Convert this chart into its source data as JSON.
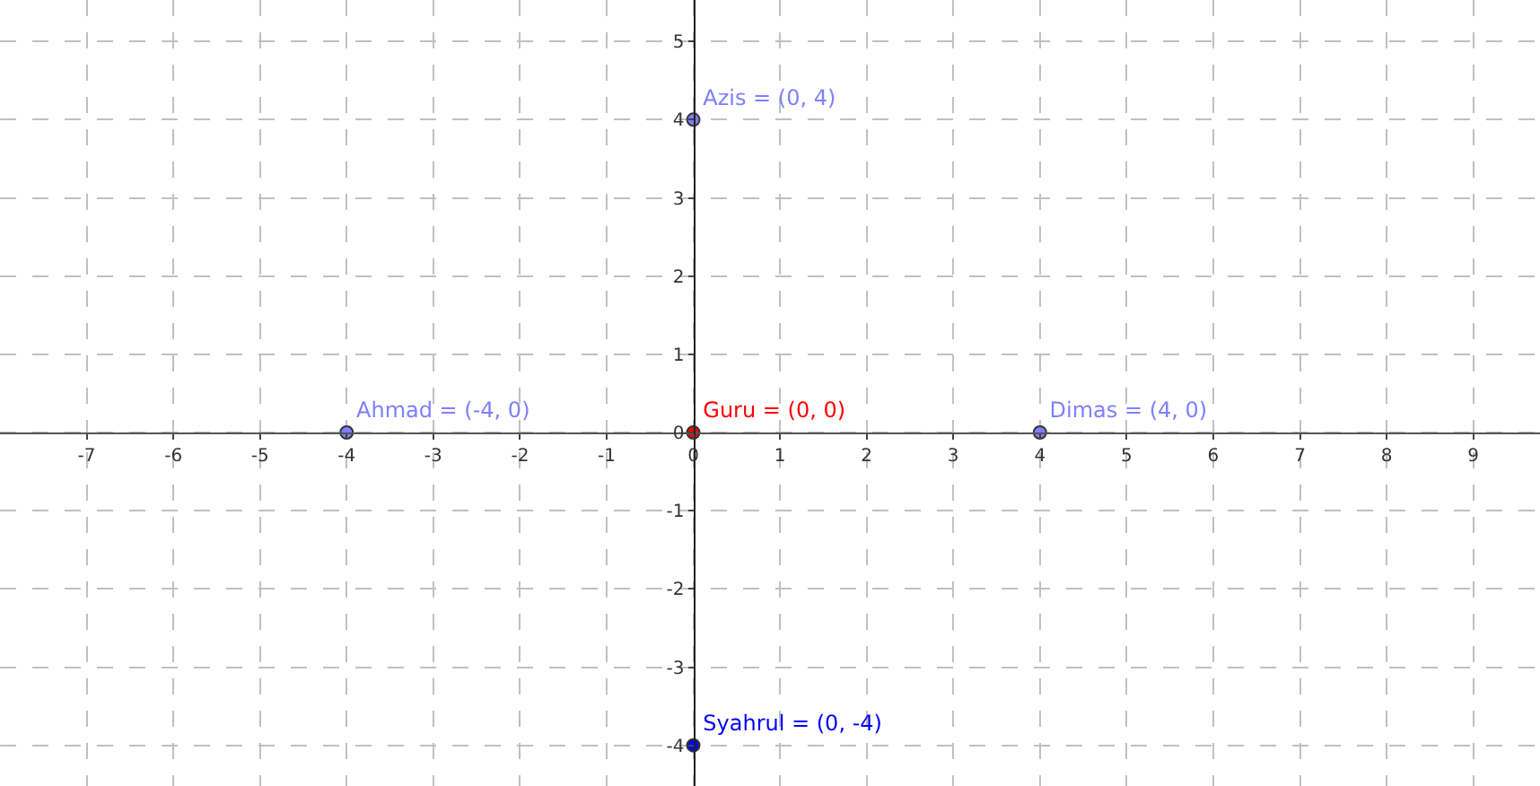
{
  "chart_data": {
    "type": "scatter",
    "xlim": [
      -8,
      9.77
    ],
    "ylim": [
      -4.52,
      5.53
    ],
    "xticks": [
      -7,
      -6,
      -5,
      -4,
      -3,
      -2,
      -1,
      0,
      1,
      2,
      3,
      4,
      5,
      6,
      7,
      8,
      9
    ],
    "yticks": [
      -4,
      -3,
      -2,
      -1,
      0,
      1,
      2,
      3,
      4,
      5
    ],
    "grid": true,
    "legend": false,
    "marker": "circle",
    "series": [
      {
        "name": "Azis = (0, 4)",
        "color": "#7f7fff",
        "x": [
          0
        ],
        "values": [
          4
        ]
      },
      {
        "name": "Ahmad = (-4, 0)",
        "color": "#7f7fff",
        "x": [
          -4
        ],
        "values": [
          0
        ]
      },
      {
        "name": "Guru = (0, 0)",
        "color": "#ff0000",
        "x": [
          0
        ],
        "values": [
          0
        ]
      },
      {
        "name": "Dimas = (4, 0)",
        "color": "#7f7fff",
        "x": [
          4
        ],
        "values": [
          0
        ]
      },
      {
        "name": "Syahrul = (0, -4)",
        "color": "#0000ff",
        "x": [
          0
        ],
        "values": [
          -4
        ]
      }
    ]
  }
}
